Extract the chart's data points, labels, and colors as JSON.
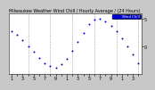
{
  "title": "Milwaukee Weather Wind Chill / Hourly Average / (24 Hours)",
  "hours": [
    1,
    2,
    3,
    4,
    5,
    6,
    7,
    8,
    9,
    10,
    11,
    12,
    13,
    14,
    15,
    16,
    17,
    18,
    19,
    20,
    21,
    22,
    23,
    24
  ],
  "wind_chill": [
    2.8,
    2.2,
    1.2,
    0.0,
    -1.0,
    -2.0,
    -3.0,
    -3.5,
    -3.8,
    -3.2,
    -2.2,
    -0.8,
    0.8,
    2.5,
    4.0,
    4.8,
    5.0,
    4.5,
    3.8,
    2.8,
    1.5,
    0.0,
    -1.5,
    -3.0
  ],
  "dot_color": "#0000cc",
  "bg_color": "#c8c8c8",
  "plot_bg": "#ffffff",
  "border_color": "#808080",
  "grid_color": "#808080",
  "ylim": [
    -5,
    6
  ],
  "ytick_vals": [
    0,
    5
  ],
  "ytick_labels": [
    "0",
    "5"
  ],
  "grid_x": [
    4,
    8,
    12,
    16,
    20,
    24
  ],
  "legend_label": "Wind Chill",
  "legend_color": "#0000cc",
  "title_fontsize": 3.5,
  "tick_fontsize": 3.5
}
